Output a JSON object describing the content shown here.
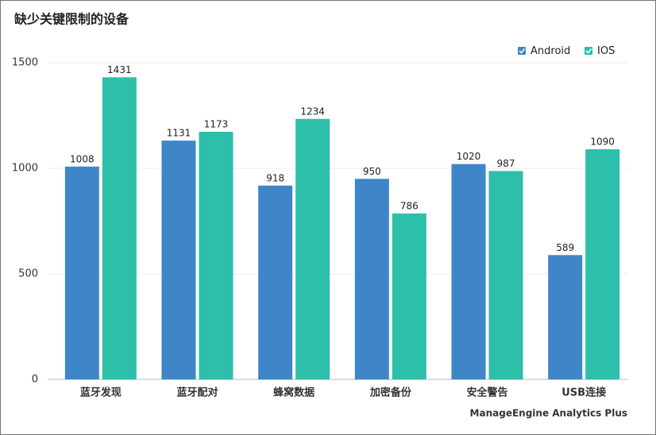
{
  "chart_data": {
    "type": "bar",
    "title": "缺少关键限制的设备",
    "categories": [
      "蓝牙发现",
      "蓝牙配对",
      "蜂窝数据",
      "加密备份",
      "安全警告",
      "USB连接"
    ],
    "series": [
      {
        "name": "Android",
        "color": "#3f86c8",
        "values": [
          1008,
          1131,
          918,
          950,
          1020,
          589
        ]
      },
      {
        "name": "IOS",
        "color": "#2dbfa9",
        "values": [
          1431,
          1173,
          1234,
          786,
          987,
          1090
        ]
      }
    ],
    "ylim": [
      0,
      1500
    ],
    "yticks": [
      0,
      500,
      1000,
      1500
    ],
    "grid": true,
    "legend": "top-right",
    "brand": "ManageEngine Analytics Plus"
  }
}
